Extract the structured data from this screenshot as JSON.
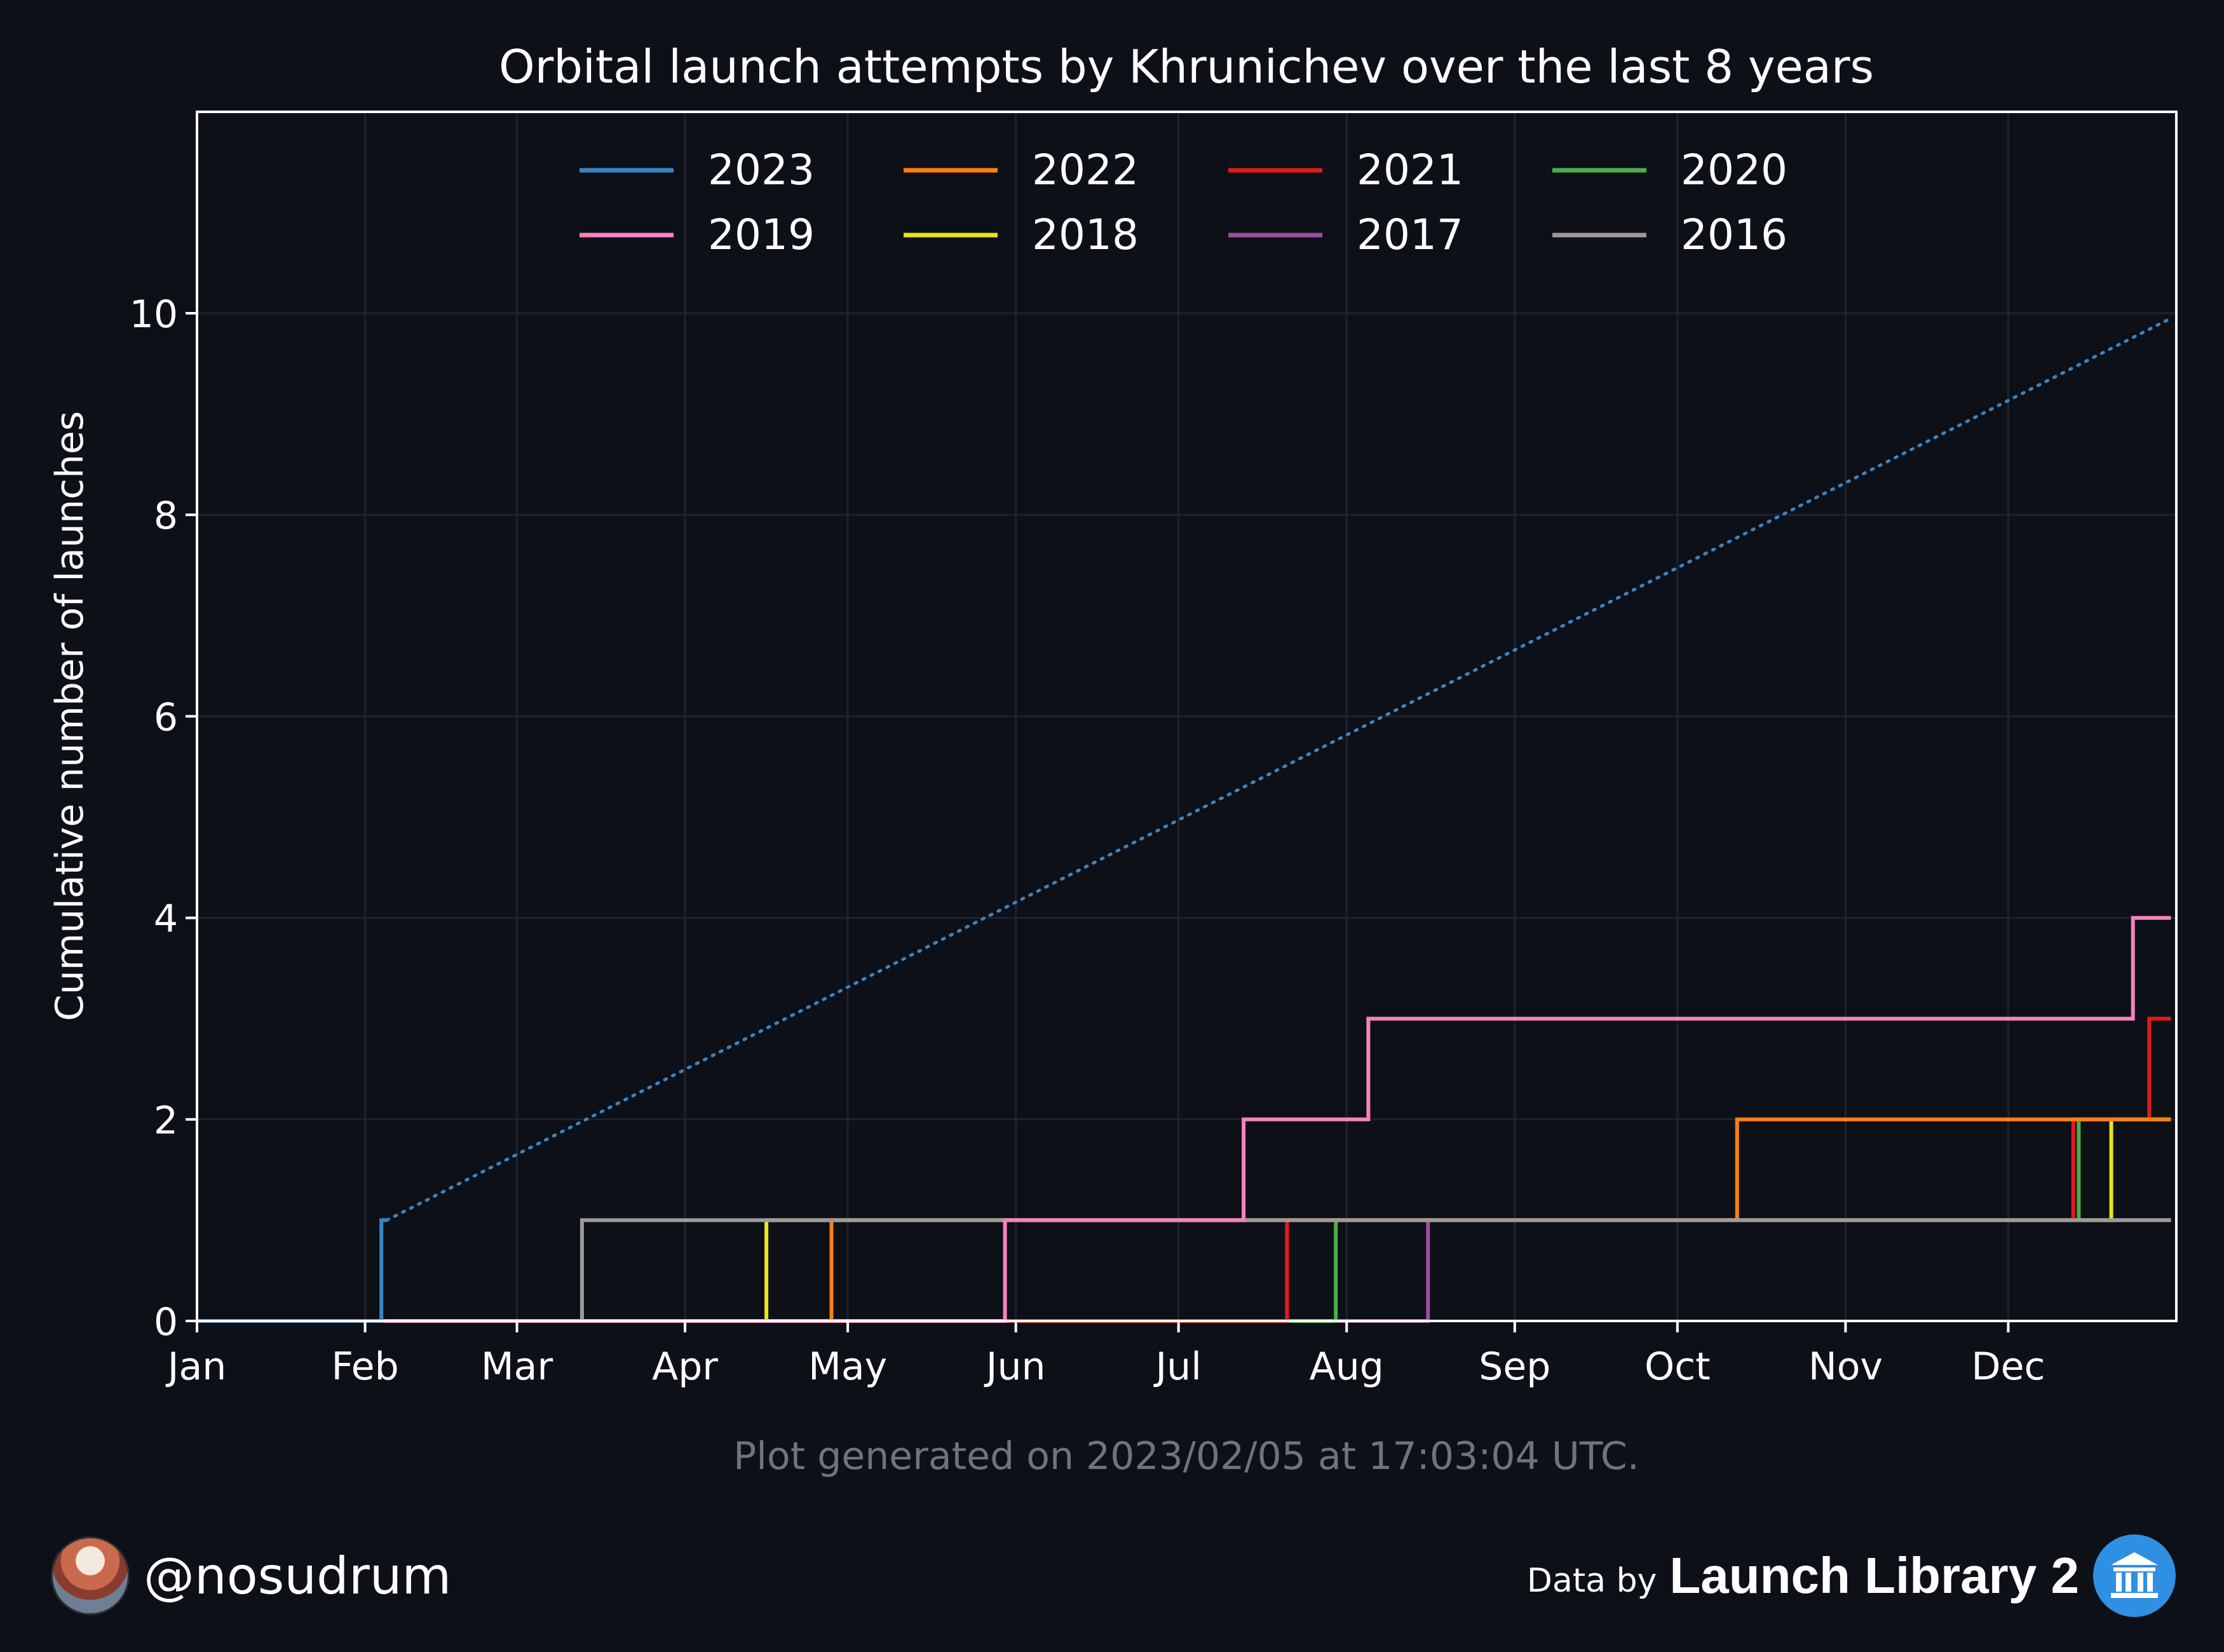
{
  "chart_data": {
    "type": "line",
    "step": true,
    "title": "Orbital launch attempts by Khrunichev over the last 8 years",
    "xlabel": "",
    "ylabel": "Cumulative number of launches",
    "x_tick_labels": [
      "Jan",
      "Feb",
      "Mar",
      "Apr",
      "May",
      "Jun",
      "Jul",
      "Aug",
      "Sep",
      "Oct",
      "Nov",
      "Dec"
    ],
    "y_ticks": [
      0,
      2,
      4,
      6,
      8,
      10
    ],
    "ylim": [
      0,
      12
    ],
    "xlim": [
      "01-01",
      "12-31"
    ],
    "grid": true,
    "legend": {
      "placement": "top-center",
      "columns": 4
    },
    "series": [
      {
        "name": "2023",
        "color": "#3a84c4",
        "launch_dates": [
          "02-04"
        ],
        "end_date": "02-05"
      },
      {
        "name": "2022",
        "color": "#ff7f0e",
        "launch_dates": [
          "04-28",
          "10-12"
        ],
        "end_date": "12-31"
      },
      {
        "name": "2021",
        "color": "#e3191c",
        "launch_dates": [
          "07-21",
          "12-13",
          "12-27"
        ],
        "end_date": "12-31"
      },
      {
        "name": "2020",
        "color": "#4cae4a",
        "launch_dates": [
          "07-30",
          "12-14"
        ],
        "end_date": "12-31"
      },
      {
        "name": "2019",
        "color": "#f782bf",
        "launch_dates": [
          "05-30",
          "07-13",
          "08-05",
          "12-24"
        ],
        "end_date": "12-31"
      },
      {
        "name": "2018",
        "color": "#e6e619",
        "launch_dates": [
          "04-16",
          "12-20"
        ],
        "end_date": "12-31"
      },
      {
        "name": "2017",
        "color": "#994fa3",
        "launch_dates": [
          "08-16"
        ],
        "end_date": "12-31"
      },
      {
        "name": "2016",
        "color": "#9b9b9b",
        "launch_dates": [
          "03-13"
        ],
        "end_date": "12-31"
      }
    ],
    "projection": {
      "series": "2023",
      "color": "#3a84c4",
      "style": "dotted",
      "from": {
        "date": "02-05",
        "value": 1
      },
      "to": {
        "date": "12-31",
        "value": 9.95
      }
    }
  },
  "footer": {
    "generated": "Plot generated on 2023/02/05 at 17:03:04 UTC.",
    "handle": "@nosudrum",
    "data_by": "Data by",
    "source": "Launch Library 2"
  },
  "colors": {
    "background": "#0d1017",
    "grid": "#1e232d",
    "axis": "#ffffff",
    "muted_text": "#6f737a"
  }
}
